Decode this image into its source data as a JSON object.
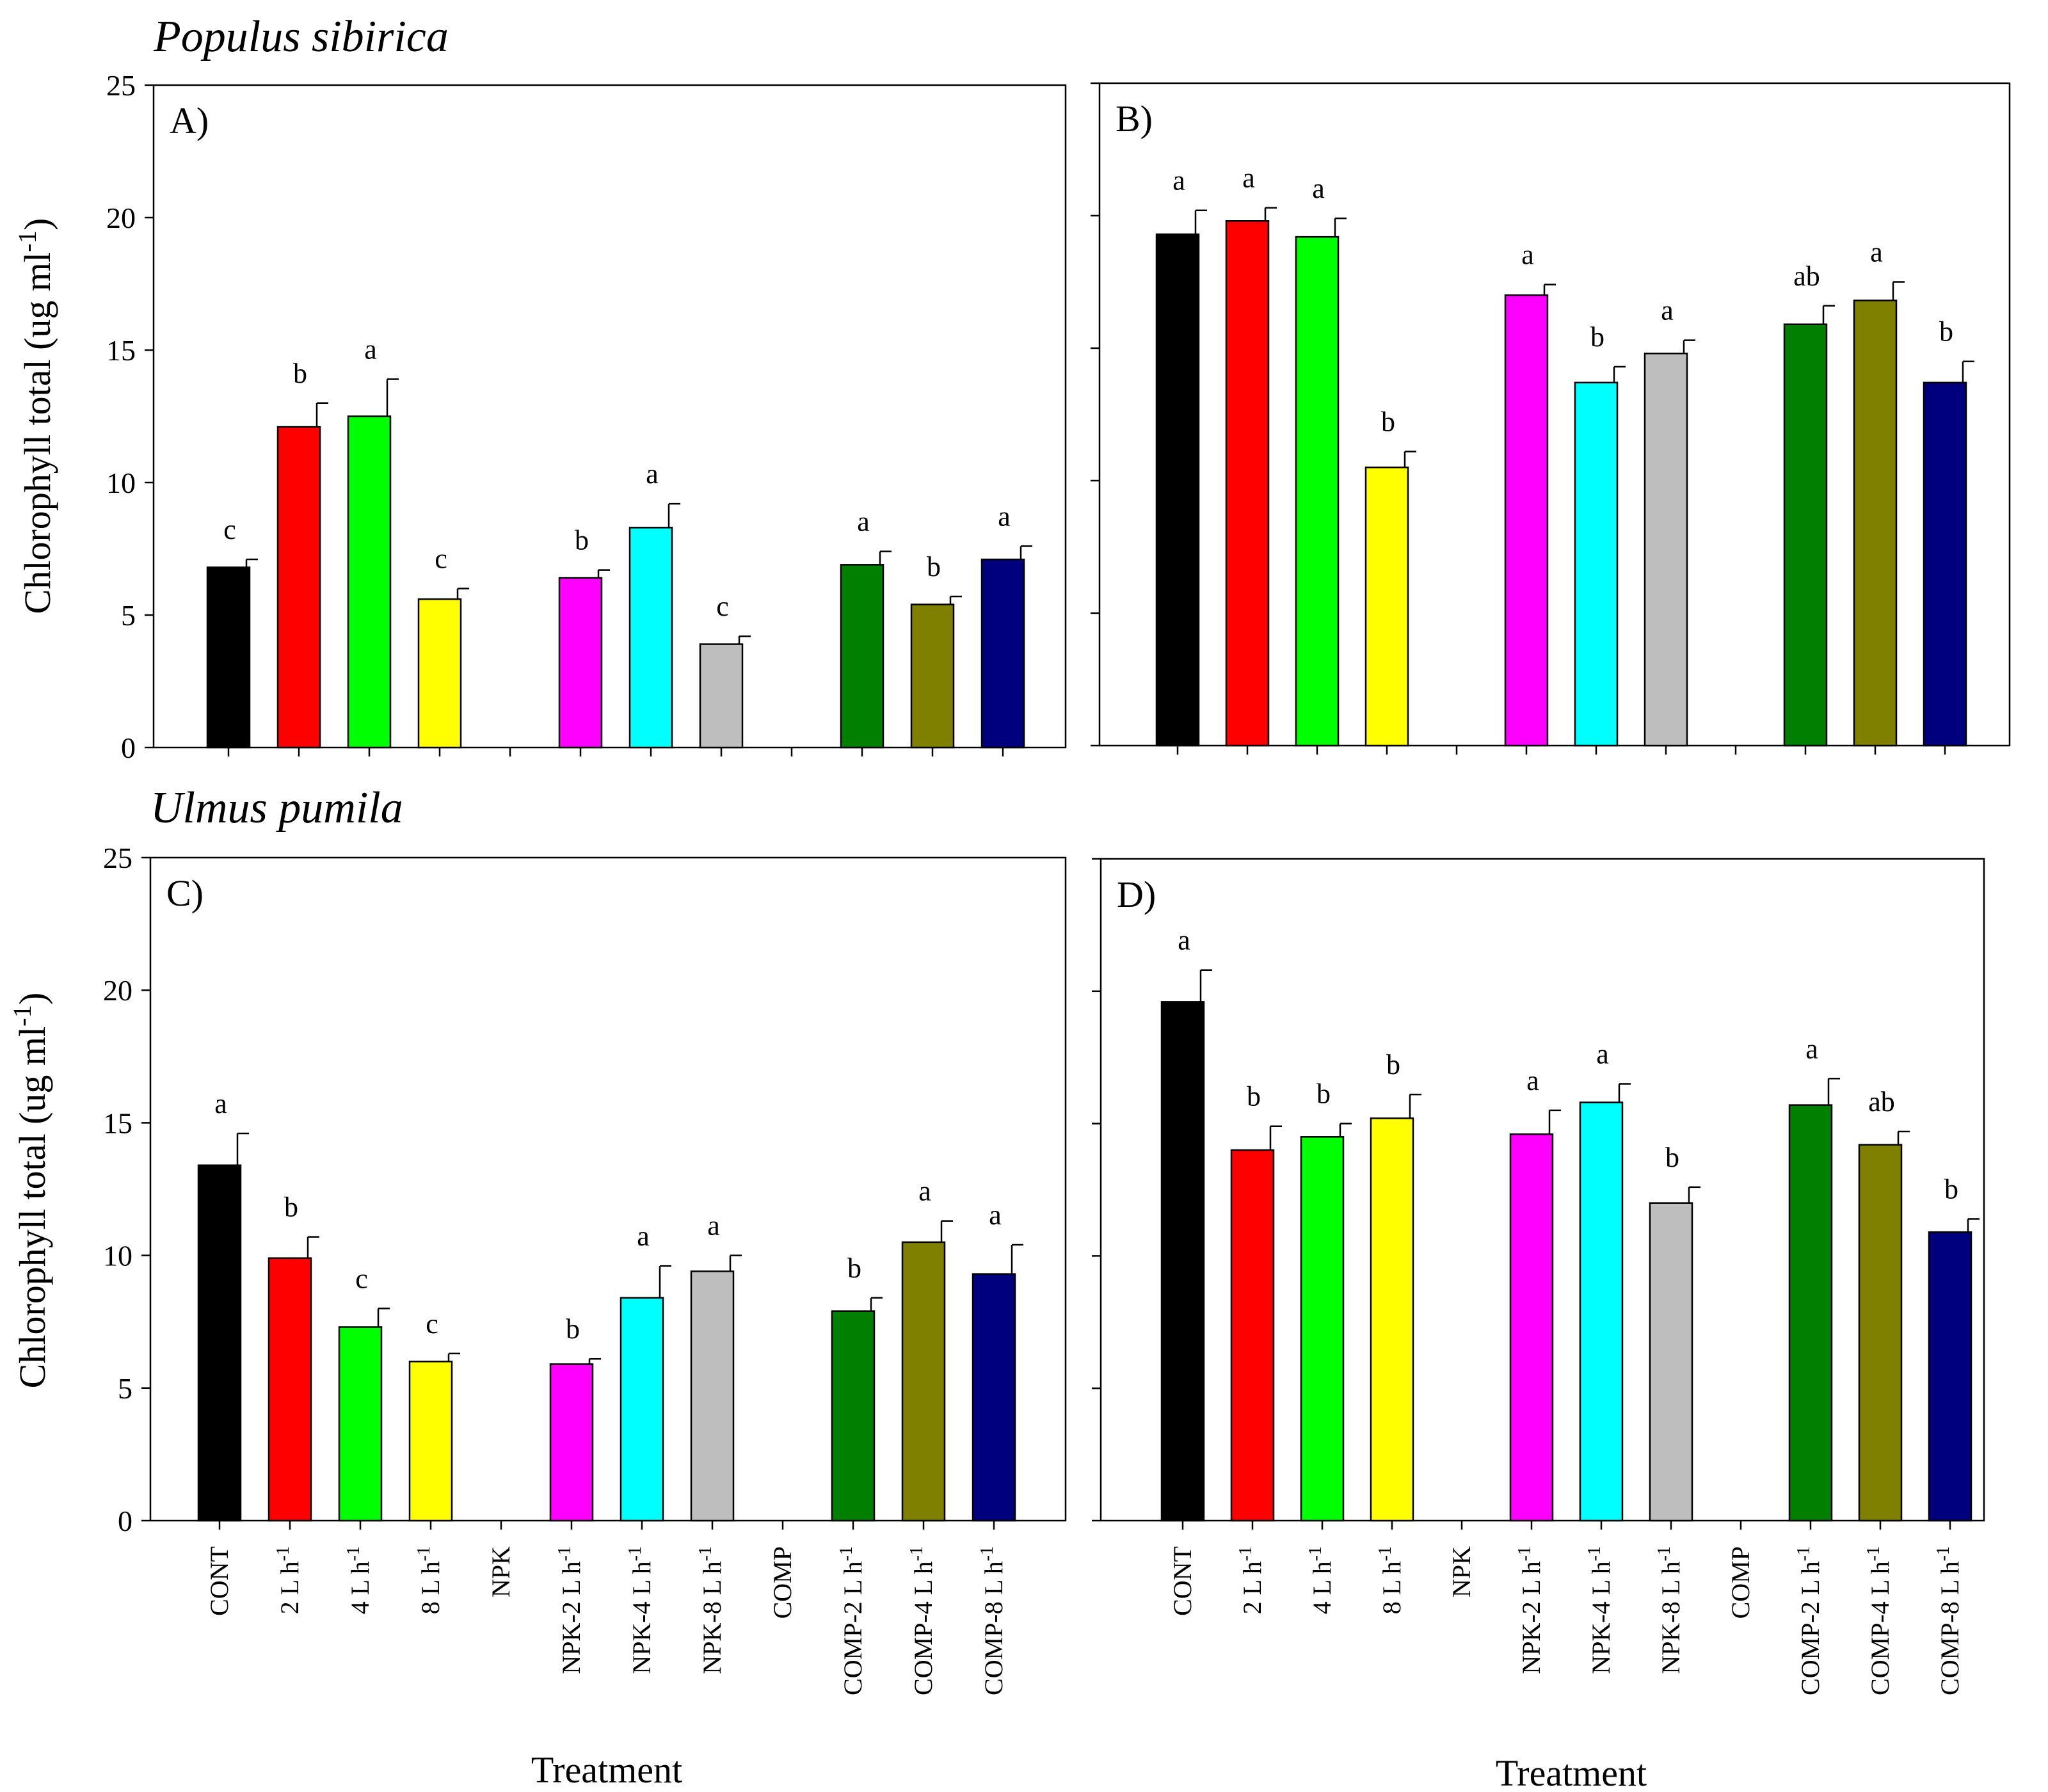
{
  "chart_data": [
    {
      "type": "bar",
      "panel_label": "A)",
      "species": "Populus sibirica",
      "ylabel": "Chlorophyll total (ug ml-1)",
      "ylim": [
        0,
        25
      ],
      "yticks": [
        0,
        5,
        10,
        15,
        20,
        25
      ],
      "show_tick_labels": true,
      "categories": [
        "CONT",
        "2 L h-1",
        "4 L h-1",
        "8 L h-1",
        "NPK",
        "NPK-2 L h-1",
        "NPK-4 L h-1",
        "NPK-8 L h-1",
        "COMP",
        "COMP-2 L h-1",
        "COMP-4 L h-1",
        "COMP-8 L h-1"
      ],
      "values": [
        6.8,
        12.1,
        12.5,
        5.6,
        null,
        6.4,
        8.3,
        3.9,
        null,
        6.9,
        5.4,
        7.1
      ],
      "errors": [
        0.3,
        0.9,
        1.4,
        0.4,
        null,
        0.3,
        0.9,
        0.3,
        null,
        0.5,
        0.3,
        0.5
      ],
      "letters": [
        "c",
        "b",
        "a",
        "c",
        "",
        "b",
        "a",
        "c",
        "",
        "a",
        "b",
        "a"
      ]
    },
    {
      "type": "bar",
      "panel_label": "B)",
      "species": "",
      "ylabel": "",
      "ylim": [
        0,
        25
      ],
      "yticks": [
        0,
        5,
        10,
        15,
        20,
        25
      ],
      "show_tick_labels": false,
      "categories": [
        "CONT",
        "2 L h-1",
        "4 L h-1",
        "8 L h-1",
        "NPK",
        "NPK-2 L h-1",
        "NPK-4 L h-1",
        "NPK-8 L h-1",
        "COMP",
        "COMP-2 L h-1",
        "COMP-4 L h-1",
        "COMP-8 L h-1"
      ],
      "values": [
        19.3,
        19.8,
        19.2,
        10.5,
        null,
        17.0,
        13.7,
        14.8,
        null,
        15.9,
        16.8,
        13.7
      ],
      "errors": [
        0.9,
        0.5,
        0.7,
        0.6,
        null,
        0.4,
        0.6,
        0.5,
        null,
        0.7,
        0.7,
        0.8
      ],
      "letters": [
        "a",
        "a",
        "a",
        "b",
        "",
        "a",
        "b",
        "a",
        "",
        "ab",
        "a",
        "b"
      ]
    },
    {
      "type": "bar",
      "panel_label": "C)",
      "species": "Ulmus pumila",
      "ylabel": "Chlorophyll total (ug ml-1)",
      "ylim": [
        0,
        25
      ],
      "yticks": [
        0,
        5,
        10,
        15,
        20,
        25
      ],
      "show_tick_labels": true,
      "xlabel": "Treatment",
      "categories": [
        "CONT",
        "2 L h-1",
        "4 L h-1",
        "8 L h-1",
        "NPK",
        "NPK-2 L h-1",
        "NPK-4 L h-1",
        "NPK-8 L h-1",
        "COMP",
        "COMP-2 L h-1",
        "COMP-4 L h-1",
        "COMP-8 L h-1"
      ],
      "values": [
        13.4,
        9.9,
        7.3,
        6.0,
        null,
        5.9,
        8.4,
        9.4,
        null,
        7.9,
        10.5,
        9.3
      ],
      "errors": [
        1.2,
        0.8,
        0.7,
        0.3,
        null,
        0.2,
        1.2,
        0.6,
        null,
        0.5,
        0.8,
        1.1
      ],
      "letters": [
        "a",
        "b",
        "c",
        "c",
        "",
        "b",
        "a",
        "a",
        "",
        "b",
        "a",
        "a"
      ]
    },
    {
      "type": "bar",
      "panel_label": "D)",
      "species": "",
      "ylabel": "",
      "ylim": [
        0,
        25
      ],
      "yticks": [
        0,
        5,
        10,
        15,
        20,
        25
      ],
      "show_tick_labels": false,
      "xlabel": "Treatment",
      "categories": [
        "CONT",
        "2 L h-1",
        "4 L h-1",
        "8 L h-1",
        "NPK",
        "NPK-2 L h-1",
        "NPK-4 L h-1",
        "NPK-8 L h-1",
        "COMP",
        "COMP-2 L h-1",
        "COMP-4 L h-1",
        "COMP-8 L h-1"
      ],
      "values": [
        19.6,
        14.0,
        14.5,
        15.2,
        null,
        14.6,
        15.8,
        12.0,
        null,
        15.7,
        14.2,
        10.9
      ],
      "errors": [
        1.2,
        0.9,
        0.5,
        0.9,
        null,
        0.9,
        0.7,
        0.6,
        null,
        1.0,
        0.5,
        0.5
      ],
      "letters": [
        "a",
        "b",
        "b",
        "b",
        "",
        "a",
        "a",
        "b",
        "",
        "a",
        "ab",
        "b"
      ]
    }
  ],
  "series_colors": [
    "#000000",
    "#ff0000",
    "#00ff00",
    "#ffff00",
    null,
    "#ff00ff",
    "#00ffff",
    "#bebebe",
    null,
    "#007f00",
    "#7f7f00",
    "#00007f"
  ]
}
